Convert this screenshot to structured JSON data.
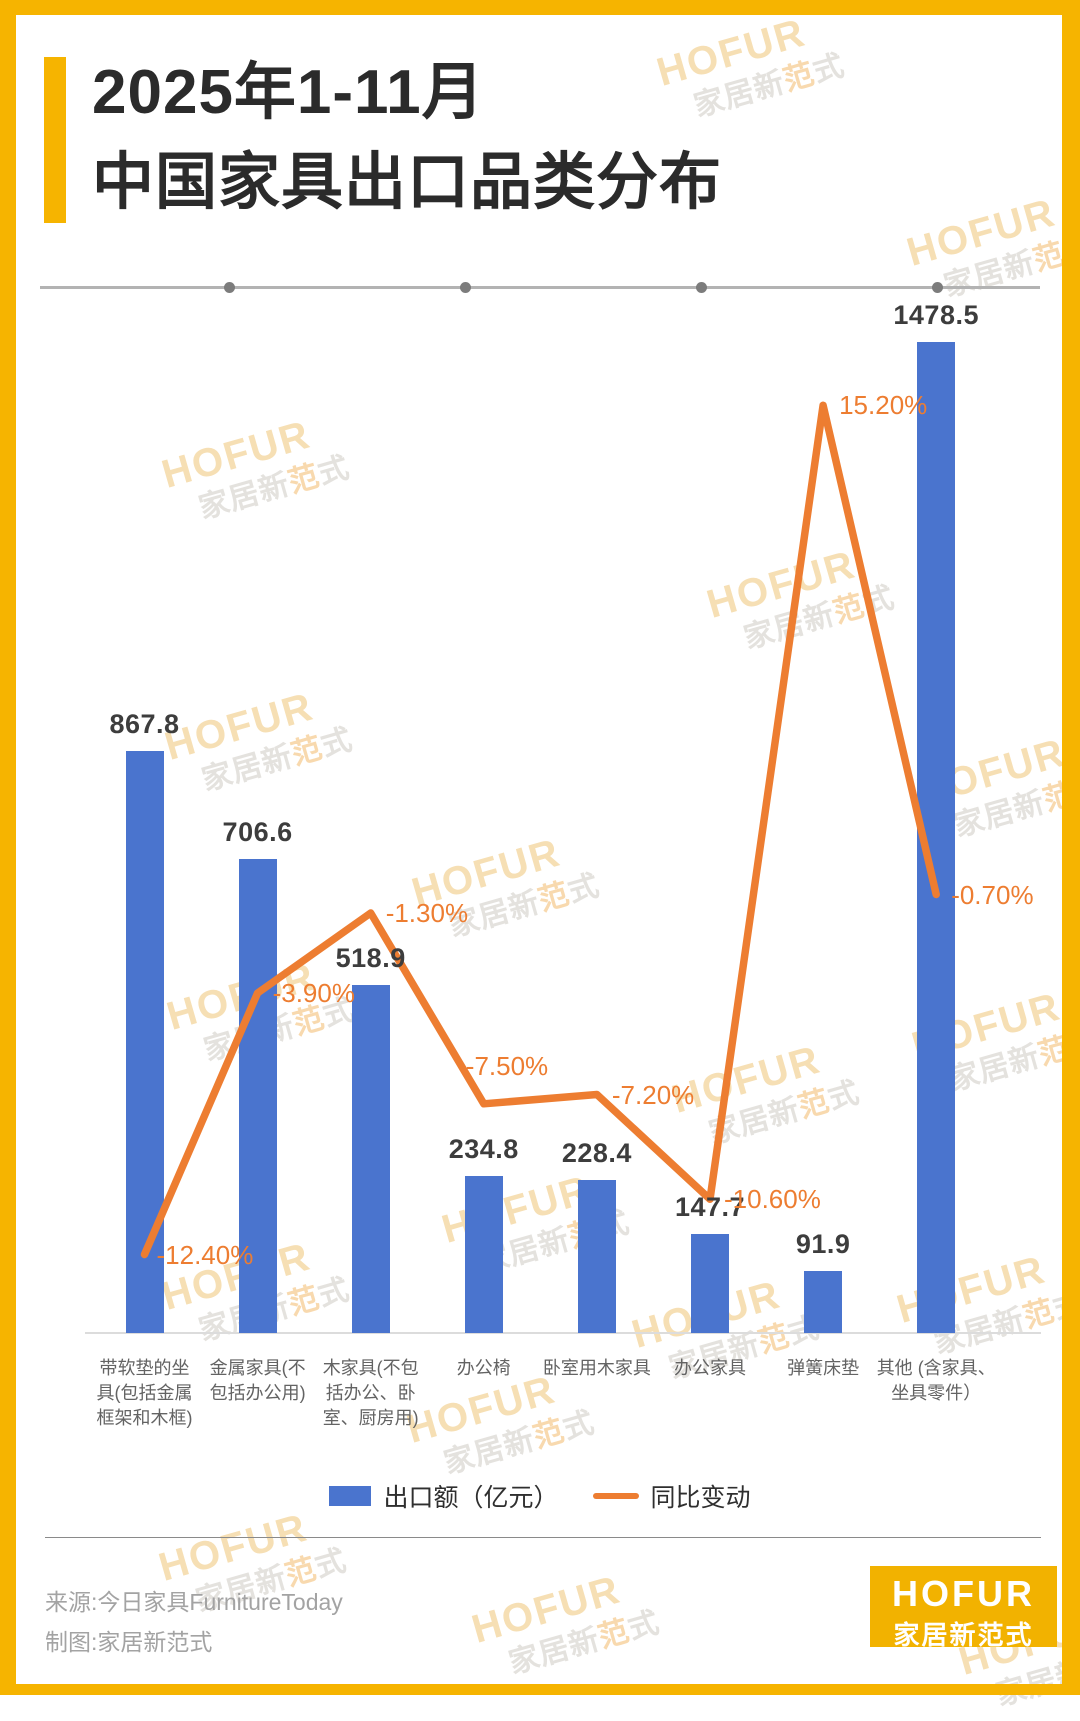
{
  "page": {
    "title_line1": "2025年1-11月",
    "title_line2": "中国家具出口品类分布",
    "source_line": "来源:今日家具FurnitureToday",
    "credit_line": "制图:家居新范式",
    "brand": {
      "name": "HOFUR",
      "subtitle": "家居新范式"
    },
    "watermark": {
      "line1": "HOFUR",
      "line2": "家居新范式"
    },
    "colors": {
      "accent_yellow": "#F6B400",
      "bar_blue": "#4A74CE",
      "line_orange": "#ED7D31",
      "title_text": "#2B2B2B"
    }
  },
  "chart_data": {
    "type": "bar",
    "subtype": "bar+line combo",
    "title": "2025年1-11月中国家具出口品类分布",
    "categories": [
      "带软垫的坐具(包括金属框架和木框)",
      "金属家具(不包括办公用)",
      "木家具(不包括办公、卧室、厨房用)",
      "办公椅",
      "卧室用木家具",
      "办公家具",
      "弹簧床垫",
      "其他 (含家具、坐具零件）"
    ],
    "series": [
      {
        "name": "出口额（亿元）",
        "type": "bar",
        "color": "#4A74CE",
        "values": [
          867.8,
          706.6,
          518.9,
          234.8,
          228.4,
          147.7,
          91.9,
          1478.5
        ],
        "value_labels": [
          "867.8",
          "706.6",
          "518.9",
          "234.8",
          "228.4",
          "147.7",
          "91.9",
          "1478.5"
        ]
      },
      {
        "name": "同比变动",
        "type": "line",
        "color": "#ED7D31",
        "values": [
          -12.4,
          -3.9,
          -1.3,
          -7.5,
          -7.2,
          -10.6,
          15.2,
          -0.7
        ],
        "value_labels": [
          "-12.40%",
          "-3.90%",
          "-1.30%",
          "-7.50%",
          "-7.20%",
          "-10.60%",
          "15.20%",
          "-0.70%"
        ]
      }
    ],
    "legend_position": "bottom-center",
    "grid": false,
    "xlabel": "",
    "ylabel": ""
  }
}
